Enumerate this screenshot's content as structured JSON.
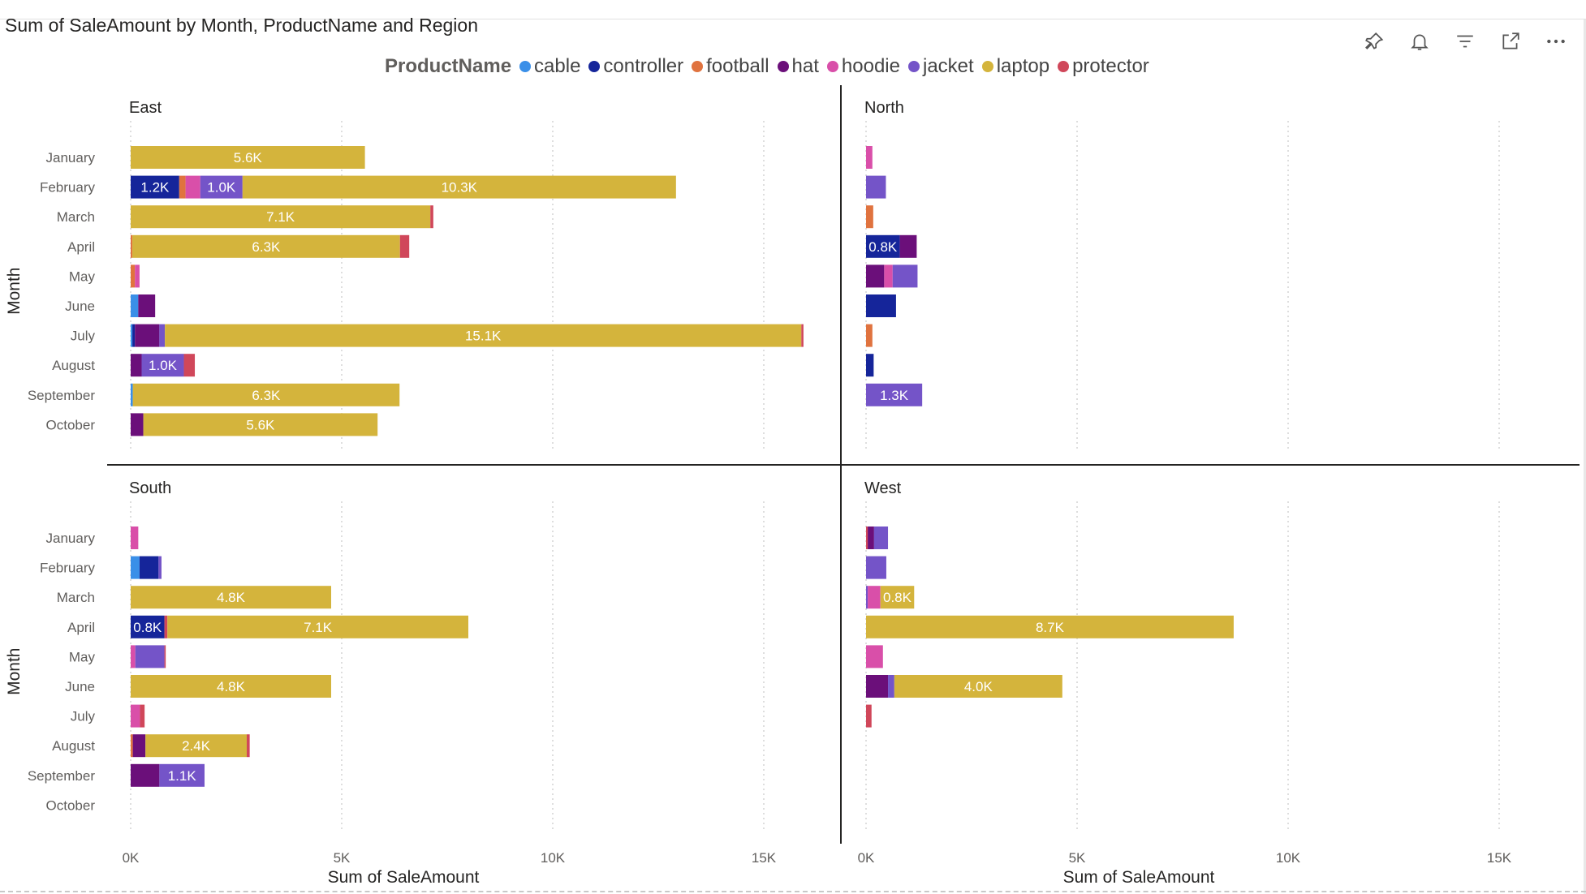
{
  "chart_data": {
    "type": "bar",
    "orientation": "horizontal",
    "stacked": true,
    "title": "Sum of SaleAmount by Month, ProductName and Region",
    "xlabel": "Sum of SaleAmount",
    "ylabel": "Month",
    "xlim": [
      0,
      16000
    ],
    "x_ticks": [
      {
        "value": 0,
        "label": "0K"
      },
      {
        "value": 5000,
        "label": "5K"
      },
      {
        "value": 10000,
        "label": "10K"
      },
      {
        "value": 15000,
        "label": "15K"
      }
    ],
    "grid": "vertical-dotted",
    "legend": {
      "title": "ProductName",
      "position": "top"
    },
    "products": [
      {
        "name": "cable",
        "color": "#3a8fe8"
      },
      {
        "name": "controller",
        "color": "#15259a"
      },
      {
        "name": "football",
        "color": "#e0733f"
      },
      {
        "name": "hat",
        "color": "#6b0f7a"
      },
      {
        "name": "hoodie",
        "color": "#d94fa9"
      },
      {
        "name": "jacket",
        "color": "#7454c8"
      },
      {
        "name": "laptop",
        "color": "#d4b43c"
      },
      {
        "name": "protector",
        "color": "#d0475a"
      }
    ],
    "months": [
      "January",
      "February",
      "March",
      "April",
      "May",
      "June",
      "July",
      "August",
      "September",
      "October"
    ],
    "panels": [
      {
        "region": "East",
        "rows": [
          [
            {
              "p": "laptop",
              "v": 5550,
              "label": "5.6K"
            }
          ],
          [
            {
              "p": "controller",
              "v": 1150,
              "label": "1.2K"
            },
            {
              "p": "football",
              "v": 150
            },
            {
              "p": "hoodie",
              "v": 350
            },
            {
              "p": "jacket",
              "v": 1000,
              "label": "1.0K"
            },
            {
              "p": "laptop",
              "v": 10270,
              "label": "10.3K"
            }
          ],
          [
            {
              "p": "laptop",
              "v": 7100,
              "label": "7.1K"
            },
            {
              "p": "protector",
              "v": 70
            }
          ],
          [
            {
              "p": "football",
              "v": 40
            },
            {
              "p": "laptop",
              "v": 6340,
              "label": "6.3K"
            },
            {
              "p": "protector",
              "v": 220
            }
          ],
          [
            {
              "p": "football",
              "v": 100
            },
            {
              "p": "hoodie",
              "v": 110
            }
          ],
          [
            {
              "p": "cable",
              "v": 180
            },
            {
              "p": "hat",
              "v": 400
            }
          ],
          [
            {
              "p": "cable",
              "v": 40
            },
            {
              "p": "controller",
              "v": 60
            },
            {
              "p": "hat",
              "v": 580
            },
            {
              "p": "jacket",
              "v": 130
            },
            {
              "p": "laptop",
              "v": 15080,
              "label": "15.1K"
            },
            {
              "p": "protector",
              "v": 50
            }
          ],
          [
            {
              "p": "hat",
              "v": 260
            },
            {
              "p": "jacket",
              "v": 1000,
              "label": "1.0K"
            },
            {
              "p": "protector",
              "v": 260
            }
          ],
          [
            {
              "p": "cable",
              "v": 50
            },
            {
              "p": "laptop",
              "v": 6320,
              "label": "6.3K"
            }
          ],
          [
            {
              "p": "hat",
              "v": 300
            },
            {
              "p": "laptop",
              "v": 5550,
              "label": "5.6K"
            }
          ]
        ]
      },
      {
        "region": "North",
        "rows": [
          [
            {
              "p": "hoodie",
              "v": 150
            }
          ],
          [
            {
              "p": "jacket",
              "v": 470
            }
          ],
          [
            {
              "p": "football",
              "v": 170
            }
          ],
          [
            {
              "p": "controller",
              "v": 800,
              "label": "0.8K"
            },
            {
              "p": "hat",
              "v": 400
            }
          ],
          [
            {
              "p": "hat",
              "v": 430
            },
            {
              "p": "hoodie",
              "v": 200
            },
            {
              "p": "jacket",
              "v": 590
            }
          ],
          [
            {
              "p": "controller",
              "v": 710
            }
          ],
          [
            {
              "p": "football",
              "v": 150
            }
          ],
          [
            {
              "p": "controller",
              "v": 180
            }
          ],
          [
            {
              "p": "jacket",
              "v": 1330,
              "label": "1.3K"
            }
          ],
          []
        ]
      },
      {
        "region": "South",
        "rows": [
          [
            {
              "p": "hoodie",
              "v": 180
            }
          ],
          [
            {
              "p": "cable",
              "v": 210
            },
            {
              "p": "controller",
              "v": 450
            },
            {
              "p": "jacket",
              "v": 70
            }
          ],
          [
            {
              "p": "laptop",
              "v": 4750,
              "label": "4.8K"
            }
          ],
          [
            {
              "p": "controller",
              "v": 800,
              "label": "0.8K"
            },
            {
              "p": "protector",
              "v": 70
            },
            {
              "p": "laptop",
              "v": 7130,
              "label": "7.1K"
            }
          ],
          [
            {
              "p": "hoodie",
              "v": 110
            },
            {
              "p": "jacket",
              "v": 690
            },
            {
              "p": "protector",
              "v": 30
            }
          ],
          [
            {
              "p": "laptop",
              "v": 4750,
              "label": "4.8K"
            }
          ],
          [
            {
              "p": "hoodie",
              "v": 220
            },
            {
              "p": "protector",
              "v": 110
            }
          ],
          [
            {
              "p": "football",
              "v": 50
            },
            {
              "p": "hat",
              "v": 300
            },
            {
              "p": "laptop",
              "v": 2400,
              "label": "2.4K"
            },
            {
              "p": "protector",
              "v": 70
            }
          ],
          [
            {
              "p": "hat",
              "v": 680
            },
            {
              "p": "jacket",
              "v": 1070,
              "label": "1.1K"
            }
          ],
          []
        ]
      },
      {
        "region": "West",
        "rows": [
          [
            {
              "p": "protector",
              "v": 40
            },
            {
              "p": "hat",
              "v": 150
            },
            {
              "p": "jacket",
              "v": 330
            }
          ],
          [
            {
              "p": "jacket",
              "v": 480
            }
          ],
          [
            {
              "p": "jacket",
              "v": 40
            },
            {
              "p": "hoodie",
              "v": 300
            },
            {
              "p": "laptop",
              "v": 800,
              "label": "0.8K"
            }
          ],
          [
            {
              "p": "laptop",
              "v": 8710,
              "label": "8.7K"
            }
          ],
          [
            {
              "p": "hoodie",
              "v": 400
            }
          ],
          [
            {
              "p": "hat",
              "v": 520
            },
            {
              "p": "jacket",
              "v": 150
            },
            {
              "p": "laptop",
              "v": 3980,
              "label": "4.0K"
            }
          ],
          [
            {
              "p": "protector",
              "v": 130
            }
          ],
          [],
          [],
          []
        ]
      }
    ]
  },
  "toolbar": {
    "icons": [
      "pin-icon",
      "bell-icon",
      "filter-icon",
      "focus-mode-icon",
      "more-options-icon"
    ]
  }
}
